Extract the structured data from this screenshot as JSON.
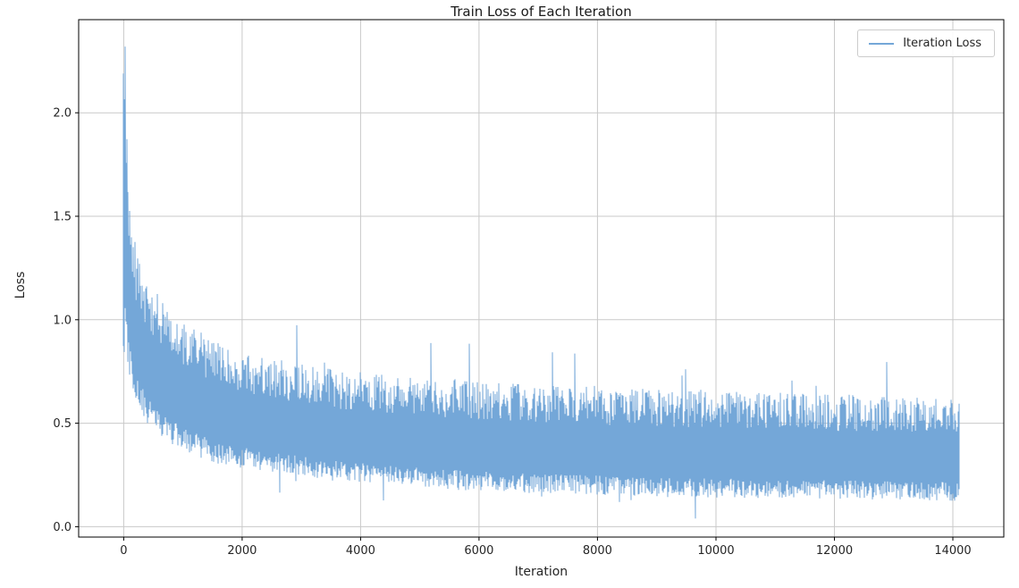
{
  "chart_data": {
    "type": "line",
    "title": "Train Loss of Each Iteration",
    "xlabel": "Iteration",
    "ylabel": "Loss",
    "x_ticks": [
      0,
      2000,
      4000,
      6000,
      8000,
      10000,
      12000,
      14000
    ],
    "x_tick_labels": [
      "0",
      "2000",
      "4000",
      "6000",
      "8000",
      "10000",
      "12000",
      "14000"
    ],
    "y_ticks": [
      0.0,
      0.5,
      1.0,
      1.5,
      2.0
    ],
    "y_tick_labels": [
      "0.0",
      "0.5",
      "1.0",
      "1.5",
      "2.0"
    ],
    "xlim": [
      -760,
      14860
    ],
    "ylim": [
      -0.05,
      2.45
    ],
    "grid": true,
    "grid_color": "#c9c9c9",
    "spine_color": "#000000",
    "text_color": "#262626",
    "background": "#ffffff",
    "legend": {
      "label": "Iteration Loss",
      "position": "upper right"
    },
    "series": [
      {
        "name": "Iteration Loss",
        "color": "#74a7d8",
        "x_start": 0,
        "x_end": 14100,
        "peak_value": 2.32,
        "peak_iteration": 20,
        "spike_probability": 0.02,
        "spike_max_extra": 0.18,
        "dip_probability": 0.012,
        "dip_max_extra": 0.11,
        "envelope_keyframes": [
          [
            0,
            0.85,
            2.32
          ],
          [
            80,
            0.75,
            1.75
          ],
          [
            200,
            0.6,
            1.35
          ],
          [
            400,
            0.5,
            1.2
          ],
          [
            700,
            0.42,
            1.08
          ],
          [
            1100,
            0.35,
            0.98
          ],
          [
            1600,
            0.3,
            0.9
          ],
          [
            2100,
            0.28,
            0.84
          ],
          [
            2800,
            0.25,
            0.8
          ],
          [
            3600,
            0.22,
            0.76
          ],
          [
            4500,
            0.2,
            0.73
          ],
          [
            5500,
            0.18,
            0.71
          ],
          [
            7000,
            0.16,
            0.69
          ],
          [
            8500,
            0.15,
            0.67
          ],
          [
            10000,
            0.14,
            0.66
          ],
          [
            11500,
            0.135,
            0.645
          ],
          [
            13000,
            0.13,
            0.63
          ],
          [
            14100,
            0.125,
            0.62
          ]
        ],
        "mean_trend": [
          [
            0,
            2.32
          ],
          [
            100,
            1.2
          ],
          [
            500,
            0.82
          ],
          [
            1000,
            0.66
          ],
          [
            2000,
            0.55
          ],
          [
            3000,
            0.5
          ],
          [
            4000,
            0.46
          ],
          [
            6000,
            0.43
          ],
          [
            8000,
            0.41
          ],
          [
            10000,
            0.4
          ],
          [
            12000,
            0.38
          ],
          [
            14000,
            0.37
          ]
        ]
      }
    ]
  }
}
